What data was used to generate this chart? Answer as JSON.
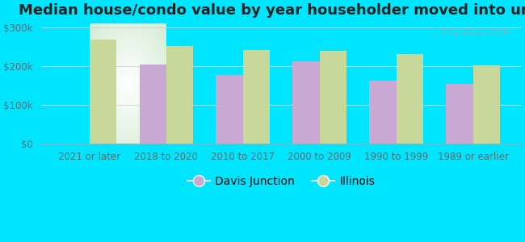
{
  "title": "Median house/condo value by year householder moved into unit",
  "categories": [
    "2021 or later",
    "2018 to 2020",
    "2010 to 2017",
    "2000 to 2009",
    "1990 to 1999",
    "1989 or earlier"
  ],
  "davis_junction": [
    0,
    204000,
    178000,
    213000,
    162000,
    155000
  ],
  "illinois": [
    268000,
    252000,
    242000,
    240000,
    232000,
    202000
  ],
  "davis_junction_color": "#c9a8d4",
  "illinois_color": "#c8d89a",
  "background_outer": "#00e5ff",
  "background_inner_center": "#ffffff",
  "background_inner_edge": "#d4ecd4",
  "yticks": [
    0,
    100000,
    200000,
    300000
  ],
  "ylabels": [
    "$0",
    "$100k",
    "$200k",
    "$300k"
  ],
  "ylim": [
    0,
    310000
  ],
  "legend_davis": "Davis Junction",
  "legend_illinois": "Illinois",
  "bar_width": 0.35,
  "title_fontsize": 13,
  "tick_fontsize": 8.5,
  "legend_fontsize": 10,
  "watermark": "City-Data.com"
}
